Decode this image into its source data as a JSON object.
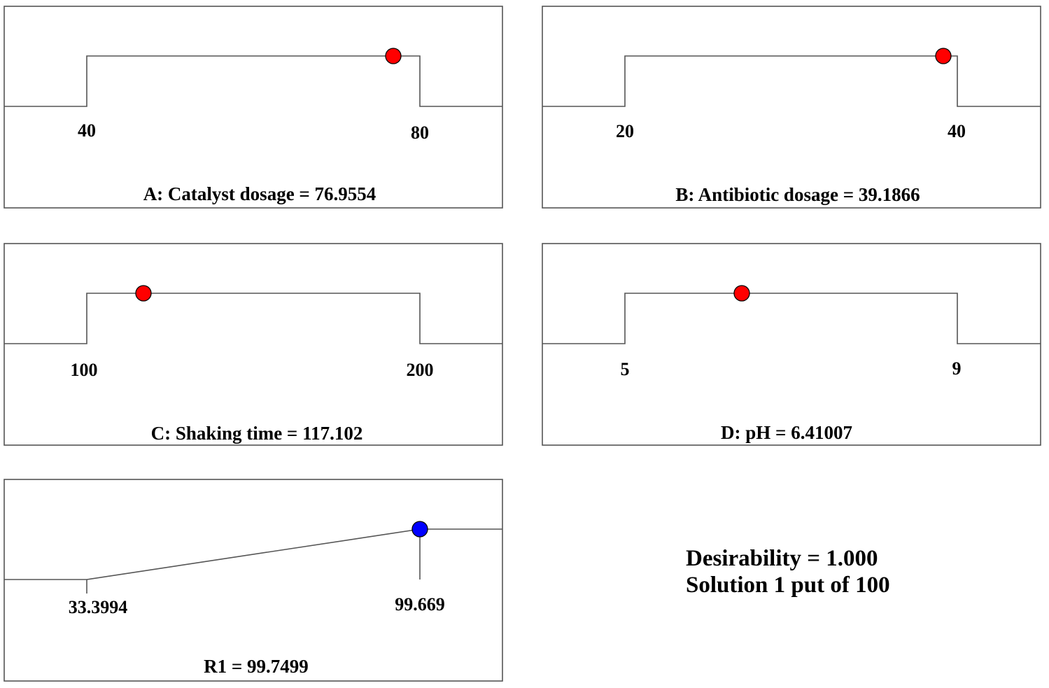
{
  "colors": {
    "factor_point": "#ff0000",
    "response_point": "#0000ff",
    "line": "#555555"
  },
  "chart_data": [
    {
      "type": "line",
      "name": "A",
      "label": "A: Catalyst dosage = 76.9554",
      "low": 40,
      "high": 80,
      "tick_labels": [
        "40",
        "80"
      ],
      "value": 76.9554,
      "shape": "ramp-up-step"
    },
    {
      "type": "line",
      "name": "B",
      "label": "B: Antibiotic dosage = 39.1866",
      "low": 20,
      "high": 40,
      "tick_labels": [
        "20",
        "40"
      ],
      "value": 39.1866,
      "shape": "ramp-up-step"
    },
    {
      "type": "line",
      "name": "C",
      "label": "C: Shaking time = 117.102",
      "low": 100,
      "high": 200,
      "tick_labels": [
        "100",
        "200"
      ],
      "value": 117.102,
      "shape": "ramp-up-step"
    },
    {
      "type": "line",
      "name": "D",
      "label": "D: pH = 6.41007",
      "low": 5,
      "high": 9,
      "tick_labels": [
        "5",
        "9"
      ],
      "value": 6.41007,
      "shape": "ramp-up-step"
    },
    {
      "type": "line",
      "name": "R1",
      "label": "R1 = 99.7499",
      "low": 33.3994,
      "high": 99.669,
      "tick_labels": [
        "33.3994",
        "99.669"
      ],
      "value": 99.7499,
      "shape": "ramp-maximize"
    }
  ],
  "summary": {
    "line1": "Desirability = 1.000",
    "line2": "Solution 1 put of 100"
  }
}
